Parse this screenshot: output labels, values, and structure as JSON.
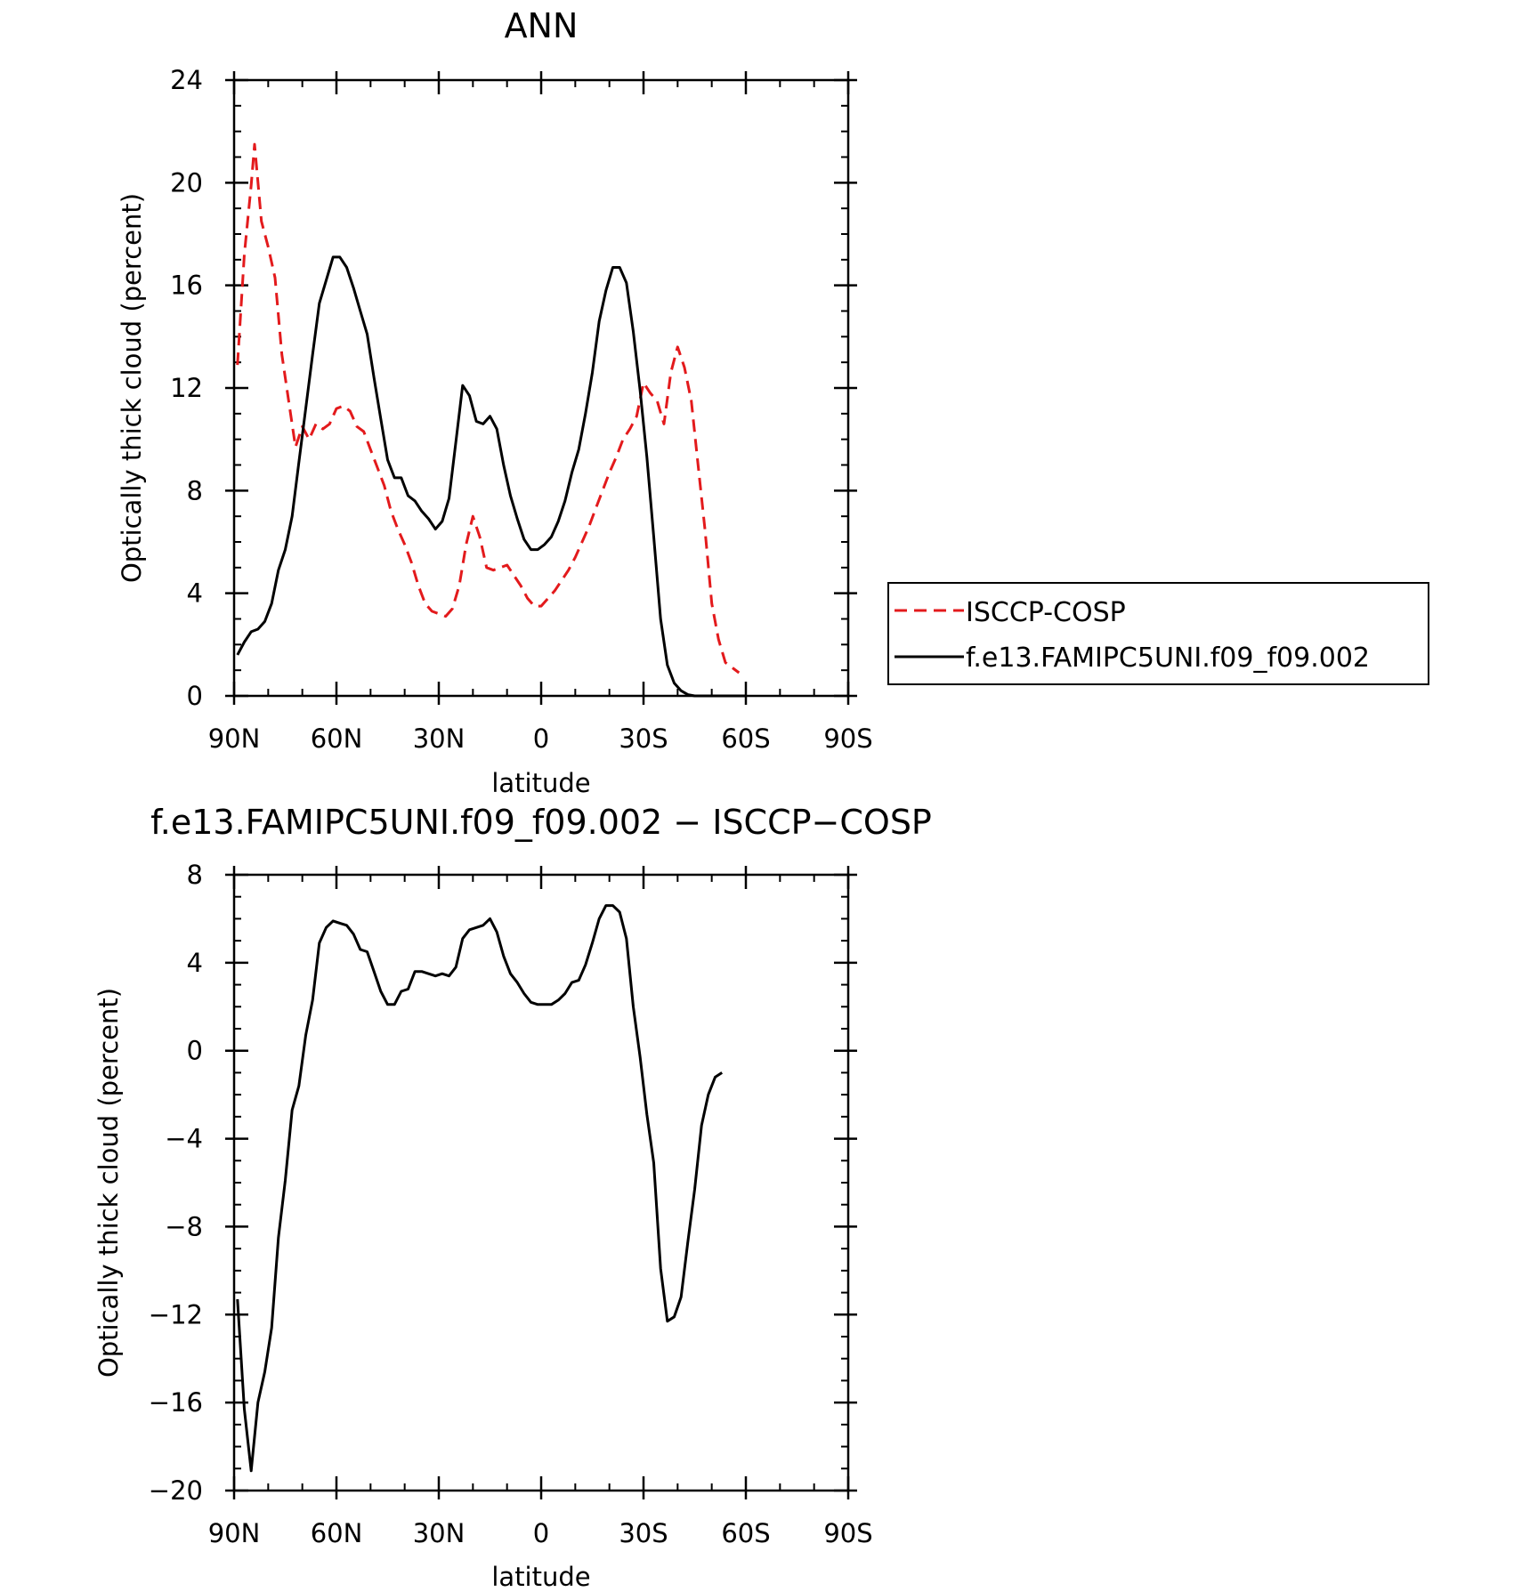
{
  "chart_data": [
    {
      "type": "line",
      "title": "ANN",
      "xlabel": "latitude",
      "ylabel": "Optically thick cloud (percent)",
      "xlim": [
        90,
        -90
      ],
      "ylim": [
        0,
        24
      ],
      "x_tick_values": [
        90,
        60,
        30,
        0,
        -30,
        -60,
        -90
      ],
      "x_tick_labels": [
        "90N",
        "60N",
        "30N",
        "0",
        "30S",
        "60S",
        "90S"
      ],
      "y_tick_values": [
        0,
        4,
        8,
        12,
        16,
        20,
        24
      ],
      "y_tick_labels": [
        "0",
        "4",
        "8",
        "12",
        "16",
        "20",
        "24"
      ],
      "legend_position": "right",
      "grid": false,
      "series": [
        {
          "name": "ISCCP-COSP",
          "color": "#e31a1c",
          "dash": "dashed",
          "points": [
            [
              89,
              12.9
            ],
            [
              87,
              17.2
            ],
            [
              85,
              19.9
            ],
            [
              84,
              21.5
            ],
            [
              82,
              18.5
            ],
            [
              80,
              17.5
            ],
            [
              78,
              16.3
            ],
            [
              76,
              13.3
            ],
            [
              74,
              11.5
            ],
            [
              72,
              9.7
            ],
            [
              70,
              10.5
            ],
            [
              68,
              10.0
            ],
            [
              66,
              10.6
            ],
            [
              64,
              10.4
            ],
            [
              62,
              10.6
            ],
            [
              60,
              11.2
            ],
            [
              58,
              11.3
            ],
            [
              56,
              11.1
            ],
            [
              54,
              10.5
            ],
            [
              52,
              10.3
            ],
            [
              50,
              9.6
            ],
            [
              48,
              8.9
            ],
            [
              46,
              8.2
            ],
            [
              44,
              7.2
            ],
            [
              42,
              6.5
            ],
            [
              40,
              5.9
            ],
            [
              38,
              5.2
            ],
            [
              36,
              4.3
            ],
            [
              34,
              3.6
            ],
            [
              32,
              3.3
            ],
            [
              30,
              3.2
            ],
            [
              28,
              3.1
            ],
            [
              26,
              3.4
            ],
            [
              24,
              4.3
            ],
            [
              22,
              5.9
            ],
            [
              20,
              7.0
            ],
            [
              18,
              6.2
            ],
            [
              16,
              5.0
            ],
            [
              14,
              4.9
            ],
            [
              12,
              5.0
            ],
            [
              10,
              5.1
            ],
            [
              8,
              4.7
            ],
            [
              6,
              4.3
            ],
            [
              4,
              3.8
            ],
            [
              2,
              3.5
            ],
            [
              0,
              3.5
            ],
            [
              -2,
              3.8
            ],
            [
              -4,
              4.1
            ],
            [
              -6,
              4.5
            ],
            [
              -8,
              4.9
            ],
            [
              -10,
              5.4
            ],
            [
              -12,
              6.0
            ],
            [
              -14,
              6.6
            ],
            [
              -16,
              7.3
            ],
            [
              -18,
              8.0
            ],
            [
              -20,
              8.7
            ],
            [
              -22,
              9.3
            ],
            [
              -24,
              10.0
            ],
            [
              -26,
              10.4
            ],
            [
              -28,
              10.9
            ],
            [
              -30,
              12.2
            ],
            [
              -32,
              11.8
            ],
            [
              -34,
              11.5
            ],
            [
              -36,
              10.6
            ],
            [
              -38,
              12.6
            ],
            [
              -40,
              13.6
            ],
            [
              -42,
              12.8
            ],
            [
              -44,
              11.5
            ],
            [
              -46,
              9.0
            ],
            [
              -48,
              6.5
            ],
            [
              -50,
              3.6
            ],
            [
              -52,
              2.2
            ],
            [
              -54,
              1.3
            ],
            [
              -56,
              1.1
            ],
            [
              -58,
              0.9
            ]
          ]
        },
        {
          "name": "f.e13.FAMIPC5UNI.f09_f09.002",
          "color": "#000000",
          "dash": "solid",
          "points": [
            [
              89,
              1.6
            ],
            [
              87,
              2.1
            ],
            [
              85,
              2.5
            ],
            [
              83,
              2.6
            ],
            [
              81,
              2.9
            ],
            [
              79,
              3.6
            ],
            [
              77,
              4.9
            ],
            [
              75,
              5.7
            ],
            [
              73,
              7.0
            ],
            [
              71,
              9.1
            ],
            [
              69,
              11.2
            ],
            [
              67,
              13.3
            ],
            [
              65,
              15.3
            ],
            [
              63,
              16.2
            ],
            [
              61,
              17.1
            ],
            [
              59,
              17.1
            ],
            [
              57,
              16.7
            ],
            [
              55,
              15.9
            ],
            [
              53,
              15.0
            ],
            [
              51,
              14.1
            ],
            [
              49,
              12.4
            ],
            [
              47,
              10.8
            ],
            [
              45,
              9.2
            ],
            [
              43,
              8.5
            ],
            [
              41,
              8.5
            ],
            [
              39,
              7.8
            ],
            [
              37,
              7.6
            ],
            [
              35,
              7.2
            ],
            [
              33,
              6.9
            ],
            [
              31,
              6.5
            ],
            [
              29,
              6.8
            ],
            [
              27,
              7.7
            ],
            [
              25,
              9.9
            ],
            [
              23,
              12.1
            ],
            [
              21,
              11.7
            ],
            [
              19,
              10.7
            ],
            [
              17,
              10.6
            ],
            [
              15,
              10.9
            ],
            [
              13,
              10.4
            ],
            [
              11,
              9.0
            ],
            [
              9,
              7.8
            ],
            [
              7,
              6.9
            ],
            [
              5,
              6.1
            ],
            [
              3,
              5.7
            ],
            [
              1,
              5.7
            ],
            [
              -1,
              5.9
            ],
            [
              -3,
              6.2
            ],
            [
              -5,
              6.8
            ],
            [
              -7,
              7.6
            ],
            [
              -9,
              8.7
            ],
            [
              -11,
              9.6
            ],
            [
              -13,
              11.0
            ],
            [
              -15,
              12.6
            ],
            [
              -17,
              14.6
            ],
            [
              -19,
              15.8
            ],
            [
              -21,
              16.7
            ],
            [
              -23,
              16.7
            ],
            [
              -25,
              16.1
            ],
            [
              -27,
              14.2
            ],
            [
              -29,
              11.9
            ],
            [
              -31,
              9.3
            ],
            [
              -33,
              6.2
            ],
            [
              -35,
              3.0
            ],
            [
              -37,
              1.2
            ],
            [
              -39,
              0.5
            ],
            [
              -41,
              0.2
            ],
            [
              -43,
              0.05
            ],
            [
              -45,
              0.0
            ],
            [
              -60,
              0.0
            ]
          ]
        }
      ]
    },
    {
      "type": "line",
      "title": "f.e13.FAMIPC5UNI.f09_f09.002 − ISCCP−COSP",
      "xlabel": "latitude",
      "ylabel": "Optically thick cloud (percent)",
      "xlim": [
        90,
        -90
      ],
      "ylim": [
        -20,
        8
      ],
      "x_tick_values": [
        90,
        60,
        30,
        0,
        -30,
        -60,
        -90
      ],
      "x_tick_labels": [
        "90N",
        "60N",
        "30N",
        "0",
        "30S",
        "60S",
        "90S"
      ],
      "y_tick_values": [
        -20,
        -16,
        -12,
        -8,
        -4,
        0,
        4,
        8
      ],
      "y_tick_labels": [
        "−20",
        "−16",
        "−12",
        "−8",
        "−4",
        "0",
        "4",
        "8"
      ],
      "grid": false,
      "series": [
        {
          "color": "#000000",
          "dash": "solid",
          "points": [
            [
              89,
              -11.3
            ],
            [
              87,
              -16.3
            ],
            [
              85,
              -19.1
            ],
            [
              83,
              -16.0
            ],
            [
              81,
              -14.6
            ],
            [
              79,
              -12.6
            ],
            [
              77,
              -8.5
            ],
            [
              75,
              -5.9
            ],
            [
              73,
              -2.7
            ],
            [
              71,
              -1.6
            ],
            [
              69,
              0.7
            ],
            [
              67,
              2.3
            ],
            [
              65,
              4.9
            ],
            [
              63,
              5.6
            ],
            [
              61,
              5.9
            ],
            [
              59,
              5.8
            ],
            [
              57,
              5.7
            ],
            [
              55,
              5.3
            ],
            [
              53,
              4.6
            ],
            [
              51,
              4.5
            ],
            [
              49,
              3.6
            ],
            [
              47,
              2.7
            ],
            [
              45,
              2.1
            ],
            [
              43,
              2.1
            ],
            [
              41,
              2.7
            ],
            [
              39,
              2.8
            ],
            [
              37,
              3.6
            ],
            [
              35,
              3.6
            ],
            [
              33,
              3.5
            ],
            [
              31,
              3.4
            ],
            [
              29,
              3.5
            ],
            [
              27,
              3.4
            ],
            [
              25,
              3.8
            ],
            [
              23,
              5.1
            ],
            [
              21,
              5.5
            ],
            [
              19,
              5.6
            ],
            [
              17,
              5.7
            ],
            [
              15,
              6.0
            ],
            [
              13,
              5.4
            ],
            [
              11,
              4.3
            ],
            [
              9,
              3.5
            ],
            [
              7,
              3.1
            ],
            [
              5,
              2.6
            ],
            [
              3,
              2.2
            ],
            [
              1,
              2.1
            ],
            [
              -1,
              2.1
            ],
            [
              -3,
              2.1
            ],
            [
              -5,
              2.3
            ],
            [
              -7,
              2.6
            ],
            [
              -9,
              3.1
            ],
            [
              -11,
              3.2
            ],
            [
              -13,
              3.9
            ],
            [
              -15,
              4.9
            ],
            [
              -17,
              6.0
            ],
            [
              -19,
              6.6
            ],
            [
              -21,
              6.6
            ],
            [
              -23,
              6.3
            ],
            [
              -25,
              5.1
            ],
            [
              -27,
              2.0
            ],
            [
              -29,
              -0.3
            ],
            [
              -31,
              -2.9
            ],
            [
              -33,
              -5.1
            ],
            [
              -35,
              -9.9
            ],
            [
              -37,
              -12.3
            ],
            [
              -39,
              -12.1
            ],
            [
              -41,
              -11.2
            ],
            [
              -43,
              -8.7
            ],
            [
              -45,
              -6.3
            ],
            [
              -47,
              -3.4
            ],
            [
              -49,
              -2.0
            ],
            [
              -51,
              -1.2
            ],
            [
              -53,
              -1.0
            ]
          ]
        }
      ]
    }
  ]
}
